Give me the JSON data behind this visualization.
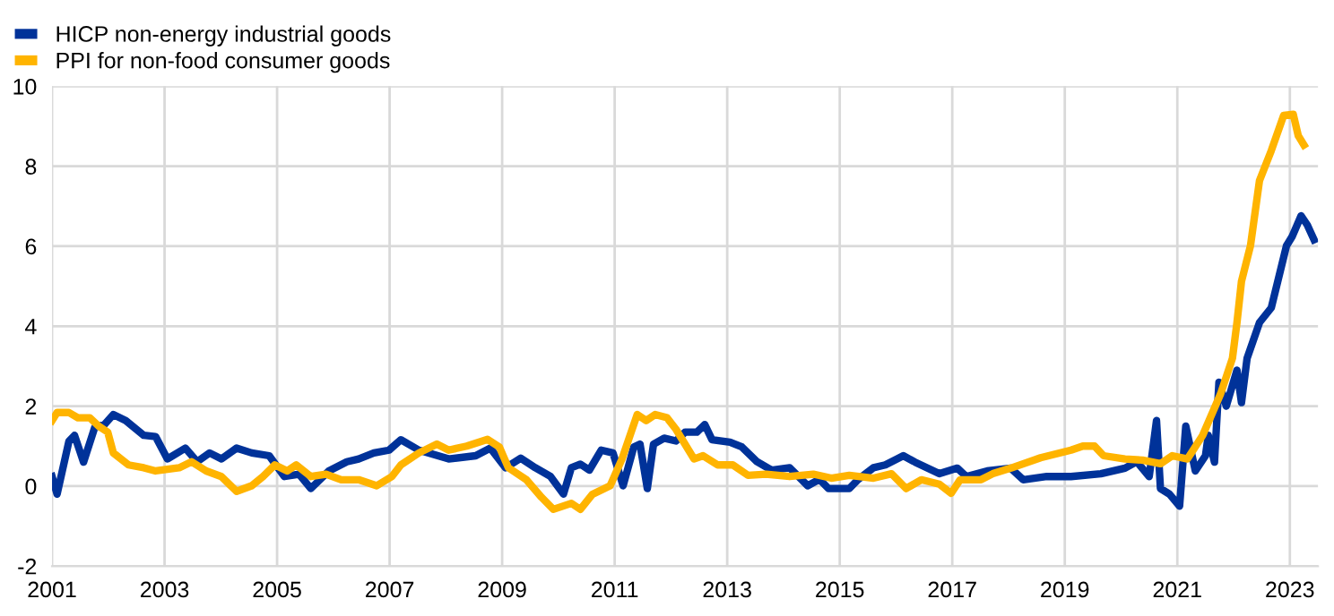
{
  "chart_data": {
    "type": "line",
    "xlim": [
      2001,
      2023.5
    ],
    "xticks": [
      2001,
      2003,
      2005,
      2007,
      2009,
      2011,
      2013,
      2015,
      2017,
      2019,
      2021,
      2023
    ],
    "ylim": [
      -2,
      10
    ],
    "yticks": [
      -2,
      0,
      2,
      4,
      6,
      8,
      10
    ],
    "grid": true,
    "legend": "top left",
    "line_style": "solid",
    "marker": "none",
    "series": [
      {
        "name": "HICP non-energy industrial goods",
        "color": "#003299",
        "x": [
          2001.0,
          2001.09,
          2001.3,
          2001.4,
          2001.56,
          2001.76,
          2001.93,
          2002.09,
          2002.31,
          2002.63,
          2002.84,
          2003.05,
          2003.37,
          2003.58,
          2003.8,
          2004.01,
          2004.28,
          2004.55,
          2004.86,
          2005.13,
          2005.39,
          2005.6,
          2005.92,
          2006.24,
          2006.45,
          2006.72,
          2006.99,
          2007.2,
          2007.52,
          2008.05,
          2008.53,
          2008.79,
          2009.06,
          2009.33,
          2009.59,
          2009.86,
          2010.09,
          2010.23,
          2010.39,
          2010.55,
          2010.76,
          2010.97,
          2011.15,
          2011.34,
          2011.45,
          2011.58,
          2011.69,
          2011.88,
          2012.09,
          2012.25,
          2012.46,
          2012.6,
          2012.73,
          2013.05,
          2013.26,
          2013.53,
          2013.79,
          2014.11,
          2014.43,
          2014.64,
          2014.8,
          2015.17,
          2015.33,
          2015.6,
          2015.81,
          2016.13,
          2016.34,
          2016.77,
          2017.09,
          2017.25,
          2017.62,
          2018.04,
          2018.26,
          2018.68,
          2019.11,
          2019.64,
          2020.07,
          2020.28,
          2020.5,
          2020.63,
          2020.7,
          2020.86,
          2021.04,
          2021.15,
          2021.32,
          2021.5,
          2021.55,
          2021.66,
          2021.74,
          2021.87,
          2022.06,
          2022.14,
          2022.24,
          2022.46,
          2022.67,
          2022.94,
          2023.04,
          2023.2,
          2023.31,
          2023.43
        ],
        "values": [
          0.24,
          -0.2,
          1.12,
          1.27,
          0.6,
          1.47,
          1.54,
          1.79,
          1.64,
          1.27,
          1.24,
          0.68,
          0.95,
          0.61,
          0.83,
          0.68,
          0.95,
          0.83,
          0.76,
          0.24,
          0.3,
          -0.06,
          0.38,
          0.61,
          0.68,
          0.83,
          0.9,
          1.16,
          0.9,
          0.68,
          0.76,
          0.95,
          0.46,
          0.7,
          0.46,
          0.24,
          -0.2,
          0.46,
          0.55,
          0.4,
          0.9,
          0.83,
          0.01,
          0.98,
          1.05,
          -0.06,
          1.05,
          1.2,
          1.13,
          1.35,
          1.35,
          1.54,
          1.16,
          1.1,
          0.98,
          0.61,
          0.4,
          0.46,
          0.01,
          0.17,
          -0.06,
          -0.06,
          0.17,
          0.46,
          0.53,
          0.76,
          0.6,
          0.31,
          0.45,
          0.24,
          0.38,
          0.45,
          0.16,
          0.24,
          0.24,
          0.31,
          0.45,
          0.61,
          0.24,
          1.64,
          -0.06,
          -0.2,
          -0.5,
          1.5,
          0.38,
          0.76,
          1.27,
          0.6,
          2.6,
          2.0,
          2.9,
          2.09,
          3.2,
          4.09,
          4.46,
          6.01,
          6.24,
          6.76,
          6.53,
          6.16
        ]
      },
      {
        "name": "PPI for non-food consumer goods",
        "color": "#ffb400",
        "x": [
          2001.0,
          2001.09,
          2001.3,
          2001.46,
          2001.67,
          2001.83,
          2001.99,
          2002.09,
          2002.36,
          2002.63,
          2002.84,
          2003.26,
          2003.48,
          2003.74,
          2004.01,
          2004.28,
          2004.55,
          2004.75,
          2004.96,
          2005.18,
          2005.34,
          2005.6,
          2005.87,
          2006.14,
          2006.45,
          2006.77,
          2007.04,
          2007.2,
          2007.52,
          2007.84,
          2008.05,
          2008.37,
          2008.74,
          2008.95,
          2009.11,
          2009.43,
          2009.7,
          2009.91,
          2010.23,
          2010.39,
          2010.6,
          2010.92,
          2011.13,
          2011.4,
          2011.56,
          2011.72,
          2011.93,
          2012.09,
          2012.41,
          2012.57,
          2012.83,
          2013.1,
          2013.37,
          2013.69,
          2014.11,
          2014.53,
          2014.85,
          2015.17,
          2015.6,
          2015.92,
          2016.18,
          2016.45,
          2016.77,
          2016.98,
          2017.14,
          2017.51,
          2017.72,
          2018.04,
          2018.57,
          2019.11,
          2019.32,
          2019.53,
          2019.69,
          2020.07,
          2020.38,
          2020.7,
          2020.91,
          2021.18,
          2021.45,
          2021.77,
          2021.98,
          2022.06,
          2022.14,
          2022.3,
          2022.46,
          2022.67,
          2022.89,
          2023.06,
          2023.15,
          2023.25
        ],
        "values": [
          1.64,
          1.84,
          1.84,
          1.71,
          1.71,
          1.5,
          1.35,
          0.83,
          0.53,
          0.46,
          0.38,
          0.46,
          0.61,
          0.38,
          0.24,
          -0.13,
          0.01,
          0.24,
          0.53,
          0.38,
          0.53,
          0.24,
          0.3,
          0.16,
          0.16,
          0.01,
          0.24,
          0.53,
          0.83,
          1.05,
          0.9,
          1.0,
          1.17,
          0.98,
          0.46,
          0.16,
          -0.28,
          -0.58,
          -0.43,
          -0.58,
          -0.21,
          0.01,
          0.68,
          1.79,
          1.64,
          1.79,
          1.71,
          1.42,
          0.68,
          0.76,
          0.53,
          0.53,
          0.27,
          0.3,
          0.24,
          0.3,
          0.2,
          0.27,
          0.2,
          0.31,
          -0.06,
          0.16,
          0.05,
          -0.18,
          0.16,
          0.16,
          0.31,
          0.45,
          0.71,
          0.9,
          1.0,
          1.0,
          0.76,
          0.68,
          0.65,
          0.56,
          0.76,
          0.68,
          1.27,
          2.31,
          3.2,
          4.09,
          5.12,
          6.01,
          7.64,
          8.39,
          9.27,
          9.3,
          8.76,
          8.53
        ]
      }
    ]
  }
}
